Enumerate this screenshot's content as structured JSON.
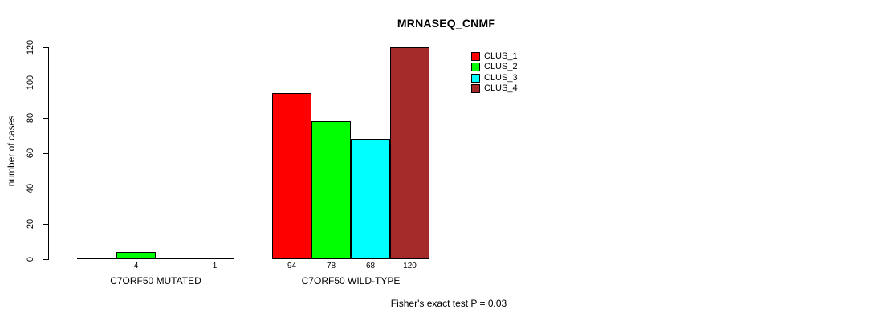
{
  "chart_data": {
    "type": "bar",
    "title": "MRNASEQ_CNMF",
    "ylabel": "number of cases",
    "ylim": [
      0,
      120
    ],
    "yticks": [
      0,
      20,
      40,
      60,
      80,
      100,
      120
    ],
    "grid": false,
    "legend_position": "top-right",
    "legend": [
      {
        "label": "CLUS_1",
        "color": "#FF0000"
      },
      {
        "label": "CLUS_2",
        "color": "#00FF00"
      },
      {
        "label": "CLUS_3",
        "color": "#00FFFF"
      },
      {
        "label": "CLUS_4",
        "color": "#A52A2A"
      }
    ],
    "groups": [
      {
        "label": "C7ORF50 MUTATED",
        "values": [
          0,
          4,
          0,
          1
        ],
        "value_labels": [
          "",
          "4",
          "",
          "1"
        ]
      },
      {
        "label": "C7ORF50 WILD-TYPE",
        "values": [
          94,
          78,
          68,
          120
        ],
        "value_labels": [
          "94",
          "78",
          "68",
          "120"
        ]
      }
    ],
    "annotation": "Fisher's exact test P = 0.03"
  }
}
